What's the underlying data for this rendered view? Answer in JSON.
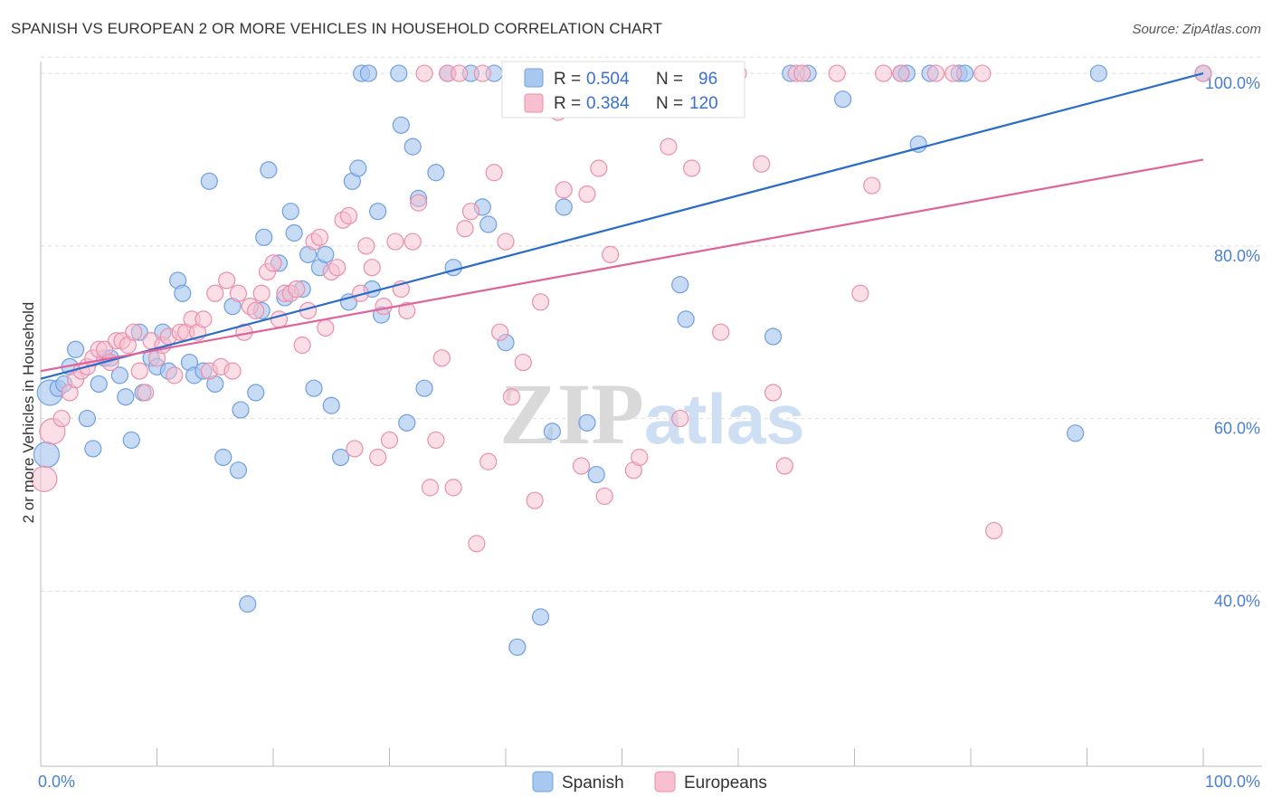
{
  "title": "SPANISH VS EUROPEAN 2 OR MORE VEHICLES IN HOUSEHOLD CORRELATION CHART",
  "source": "Source: ZipAtlas.com",
  "watermark": {
    "zip": "ZIP",
    "atlas": "atlas"
  },
  "colors": {
    "spanish_fill": "#a9c8f0",
    "spanish_stroke": "#6f9fe0",
    "spanish_line": "#2b6cc9",
    "europeans_fill": "#f7bfd0",
    "europeans_stroke": "#ea8fab",
    "europeans_line": "#e0649a",
    "tick": "#4a7fcf",
    "grid": "#dddddd"
  },
  "legend_stats": {
    "r_label": "R =",
    "n_label": "N =",
    "spanish": {
      "r": "0.504",
      "n": "96"
    },
    "europeans": {
      "r": "0.384",
      "n": "120"
    }
  },
  "chart_data": {
    "type": "scatter",
    "title": "SPANISH VS EUROPEAN 2 OR MORE VEHICLES IN HOUSEHOLD CORRELATION CHART",
    "xlabel": "",
    "ylabel": "2 or more Vehicles in Household",
    "xlim": [
      0,
      100
    ],
    "ylim": [
      22,
      102
    ],
    "x_tick_labels": [
      "0.0%",
      "100.0%"
    ],
    "y_ticks": [
      40,
      60,
      80,
      100
    ],
    "y_tick_labels": [
      "40.0%",
      "60.0%",
      "80.0%",
      "100.0%"
    ],
    "grid": true,
    "legend": {
      "position": "bottom-center",
      "entries": [
        "Spanish",
        "Europeans"
      ]
    },
    "series": [
      {
        "name": "Spanish",
        "trend": [
          [
            0,
            64.6
          ],
          [
            100,
            100
          ]
        ],
        "points": [
          [
            0.5,
            55.8
          ],
          [
            0.8,
            63
          ],
          [
            1.5,
            63.5
          ],
          [
            2,
            64
          ],
          [
            3,
            68
          ],
          [
            2.5,
            66
          ],
          [
            4,
            60
          ],
          [
            4.5,
            56.5
          ],
          [
            5,
            64
          ],
          [
            5.5,
            67
          ],
          [
            6,
            67
          ],
          [
            6.8,
            65
          ],
          [
            7.3,
            62.5
          ],
          [
            7.8,
            57.5
          ],
          [
            8.5,
            70
          ],
          [
            8.8,
            63
          ],
          [
            9.5,
            67
          ],
          [
            10,
            66
          ],
          [
            10.5,
            70
          ],
          [
            11,
            65.5
          ],
          [
            11.8,
            76
          ],
          [
            12.2,
            74.5
          ],
          [
            12.8,
            66.5
          ],
          [
            13.2,
            65
          ],
          [
            14,
            65.5
          ],
          [
            14.5,
            87.5
          ],
          [
            15,
            64
          ],
          [
            15.7,
            55.5
          ],
          [
            16.5,
            73
          ],
          [
            17,
            54
          ],
          [
            17.2,
            61
          ],
          [
            17.8,
            38.5
          ],
          [
            18.5,
            63
          ],
          [
            19,
            72.5
          ],
          [
            19.2,
            81
          ],
          [
            19.6,
            88.8
          ],
          [
            20.5,
            78
          ],
          [
            21,
            74
          ],
          [
            21.5,
            84
          ],
          [
            21.8,
            81.5
          ],
          [
            22.5,
            75
          ],
          [
            23,
            79
          ],
          [
            23.5,
            63.5
          ],
          [
            24,
            77.5
          ],
          [
            24.5,
            79
          ],
          [
            25,
            61.5
          ],
          [
            25.8,
            55.5
          ],
          [
            26.5,
            73.5
          ],
          [
            26.8,
            87.5
          ],
          [
            27.3,
            89
          ],
          [
            27.6,
            100
          ],
          [
            28.2,
            100
          ],
          [
            28.5,
            75
          ],
          [
            29,
            84
          ],
          [
            29.3,
            72
          ],
          [
            30.8,
            100
          ],
          [
            31,
            94
          ],
          [
            31.5,
            59.5
          ],
          [
            32,
            91.5
          ],
          [
            32.5,
            85.5
          ],
          [
            33,
            63.5
          ],
          [
            34,
            88.5
          ],
          [
            35,
            100
          ],
          [
            35.5,
            77.5
          ],
          [
            37,
            100
          ],
          [
            38,
            84.5
          ],
          [
            38.5,
            82.5
          ],
          [
            39,
            100
          ],
          [
            40,
            68.8
          ],
          [
            41,
            33.5
          ],
          [
            43,
            37
          ],
          [
            43.5,
            96
          ],
          [
            44,
            58.5
          ],
          [
            44.5,
            100
          ],
          [
            45,
            84.5
          ],
          [
            46,
            100
          ],
          [
            47,
            59.5
          ],
          [
            47.5,
            100
          ],
          [
            47.8,
            53.5
          ],
          [
            55,
            75.5
          ],
          [
            55.5,
            71.5
          ],
          [
            56,
            100
          ],
          [
            63,
            69.5
          ],
          [
            64.5,
            100
          ],
          [
            66,
            100
          ],
          [
            69,
            97
          ],
          [
            74,
            100
          ],
          [
            74.5,
            100
          ],
          [
            75.5,
            91.8
          ],
          [
            76.5,
            100
          ],
          [
            79,
            100
          ],
          [
            79.5,
            100
          ],
          [
            89,
            58.3
          ],
          [
            91,
            100
          ],
          [
            100,
            100
          ]
        ]
      },
      {
        "name": "Europeans",
        "trend": [
          [
            0,
            65.5
          ],
          [
            100,
            90
          ]
        ],
        "points": [
          [
            0.3,
            53
          ],
          [
            1,
            58.5
          ],
          [
            1.8,
            60
          ],
          [
            2.5,
            63
          ],
          [
            3,
            64.5
          ],
          [
            3.5,
            65.5
          ],
          [
            4,
            66
          ],
          [
            4.5,
            67
          ],
          [
            5,
            68
          ],
          [
            5.5,
            68
          ],
          [
            6,
            66.5
          ],
          [
            6.5,
            69
          ],
          [
            7,
            69
          ],
          [
            7.5,
            68.5
          ],
          [
            8,
            70
          ],
          [
            8.5,
            65.5
          ],
          [
            9,
            63
          ],
          [
            9.5,
            69
          ],
          [
            10,
            67
          ],
          [
            10.5,
            68.5
          ],
          [
            11,
            69.5
          ],
          [
            11.5,
            65
          ],
          [
            12,
            70
          ],
          [
            12.5,
            70
          ],
          [
            13,
            71.5
          ],
          [
            13.5,
            70
          ],
          [
            14,
            71.5
          ],
          [
            14.5,
            65.5
          ],
          [
            15,
            74.5
          ],
          [
            15.5,
            66
          ],
          [
            16,
            76
          ],
          [
            16.5,
            65.5
          ],
          [
            17,
            74.5
          ],
          [
            17.5,
            70
          ],
          [
            18,
            73
          ],
          [
            18.5,
            72.5
          ],
          [
            19,
            74.5
          ],
          [
            19.5,
            77
          ],
          [
            20,
            78
          ],
          [
            20.5,
            71.5
          ],
          [
            21,
            74.5
          ],
          [
            21.5,
            74.5
          ],
          [
            22,
            75
          ],
          [
            22.5,
            68.5
          ],
          [
            23,
            72.5
          ],
          [
            23.5,
            80.5
          ],
          [
            24,
            81
          ],
          [
            24.5,
            70.5
          ],
          [
            25,
            77
          ],
          [
            25.5,
            77.5
          ],
          [
            26,
            83
          ],
          [
            26.5,
            83.5
          ],
          [
            27,
            56.5
          ],
          [
            27.5,
            74.5
          ],
          [
            28,
            80
          ],
          [
            28.5,
            77.5
          ],
          [
            29,
            55.5
          ],
          [
            29.5,
            73
          ],
          [
            30,
            57.5
          ],
          [
            30.5,
            80.5
          ],
          [
            31,
            75
          ],
          [
            31.5,
            72.5
          ],
          [
            32,
            80.5
          ],
          [
            32.5,
            85
          ],
          [
            33,
            100
          ],
          [
            33.5,
            52
          ],
          [
            34,
            57.5
          ],
          [
            34.5,
            67
          ],
          [
            35,
            100
          ],
          [
            35.5,
            52
          ],
          [
            36,
            100
          ],
          [
            36.5,
            82
          ],
          [
            37,
            84
          ],
          [
            37.5,
            45.5
          ],
          [
            38,
            100
          ],
          [
            38.5,
            55
          ],
          [
            39,
            88.5
          ],
          [
            39.5,
            70
          ],
          [
            40,
            80.5
          ],
          [
            40.5,
            62.5
          ],
          [
            41,
            100
          ],
          [
            41.5,
            66.5
          ],
          [
            42,
            100
          ],
          [
            42.5,
            50.5
          ],
          [
            43,
            73.5
          ],
          [
            43.5,
            100
          ],
          [
            44,
            100
          ],
          [
            44.5,
            95.5
          ],
          [
            45,
            86.5
          ],
          [
            45.5,
            100
          ],
          [
            46,
            100
          ],
          [
            46.5,
            54.5
          ],
          [
            47,
            86
          ],
          [
            47.5,
            100
          ],
          [
            48,
            89
          ],
          [
            48.5,
            51
          ],
          [
            49,
            79
          ],
          [
            50,
            100
          ],
          [
            51,
            54
          ],
          [
            51.5,
            55.5
          ],
          [
            53,
            97
          ],
          [
            54,
            91.5
          ],
          [
            55,
            60
          ],
          [
            56,
            89
          ],
          [
            57,
            96
          ],
          [
            58.5,
            70
          ],
          [
            59,
            100
          ],
          [
            60,
            100
          ],
          [
            62,
            89.5
          ],
          [
            63,
            63
          ],
          [
            64,
            54.5
          ],
          [
            65,
            100
          ],
          [
            65.5,
            100
          ],
          [
            68.5,
            100
          ],
          [
            70.5,
            74.5
          ],
          [
            71.5,
            87
          ],
          [
            72.5,
            100
          ],
          [
            74,
            100
          ],
          [
            77,
            100
          ],
          [
            78.5,
            100
          ],
          [
            81,
            100
          ],
          [
            82,
            47
          ],
          [
            100,
            100
          ]
        ]
      }
    ]
  }
}
